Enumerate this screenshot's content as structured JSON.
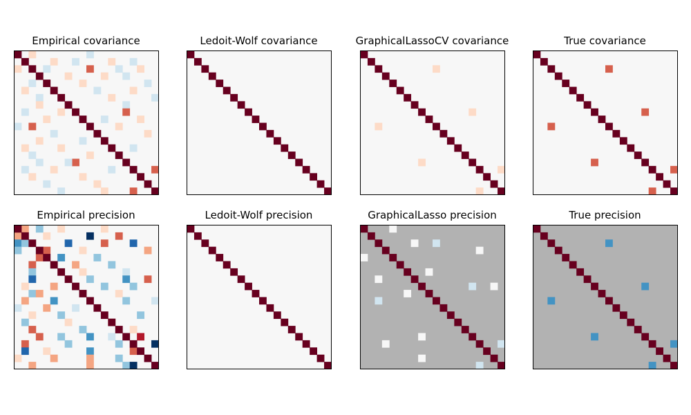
{
  "figure": {
    "background": "#ffffff",
    "colormap": "RdBu_r",
    "colors": {
      "diag": "#67001f",
      "neutral": "#f7f7f7",
      "mask": "#b2b2b2",
      "red_strong": "#b2182b",
      "red_mid": "#d6604d",
      "red_light": "#f4a582",
      "red_pale": "#fddbc7",
      "blue_pale": "#d1e5f0",
      "blue_light": "#92c5de",
      "blue_mid": "#4393c3",
      "blue_strong": "#2166ac",
      "blue_dark": "#053061"
    }
  },
  "chart_data": [
    {
      "type": "heatmap",
      "title": "Empirical covariance",
      "size": 20,
      "background_color": "#f7f7f7",
      "diagonal_color": "#67001f",
      "cells": [
        {
          "r": 0,
          "c": 10,
          "color": "#d1e5f0"
        },
        {
          "r": 0,
          "c": 2,
          "color": "#fddbc7"
        },
        {
          "r": 1,
          "c": 5,
          "color": "#fddbc7"
        },
        {
          "r": 1,
          "c": 8,
          "color": "#d1e5f0"
        },
        {
          "r": 1,
          "c": 13,
          "color": "#fddbc7"
        },
        {
          "r": 1,
          "c": 16,
          "color": "#d1e5f0"
        },
        {
          "r": 2,
          "c": 0,
          "color": "#fddbc7"
        },
        {
          "r": 2,
          "c": 10,
          "color": "#d6604d"
        },
        {
          "r": 2,
          "c": 4,
          "color": "#d1e5f0"
        },
        {
          "r": 2,
          "c": 14,
          "color": "#d1e5f0"
        },
        {
          "r": 2,
          "c": 17,
          "color": "#fddbc7"
        },
        {
          "r": 3,
          "c": 12,
          "color": "#fddbc7"
        },
        {
          "r": 3,
          "c": 7,
          "color": "#fddbc7"
        },
        {
          "r": 3,
          "c": 15,
          "color": "#d1e5f0"
        },
        {
          "r": 4,
          "c": 2,
          "color": "#d1e5f0"
        },
        {
          "r": 4,
          "c": 9,
          "color": "#fddbc7"
        },
        {
          "r": 4,
          "c": 18,
          "color": "#d1e5f0"
        },
        {
          "r": 5,
          "c": 1,
          "color": "#fddbc7"
        },
        {
          "r": 5,
          "c": 11,
          "color": "#d1e5f0"
        },
        {
          "r": 5,
          "c": 16,
          "color": "#fddbc7"
        },
        {
          "r": 6,
          "c": 3,
          "color": "#d1e5f0"
        },
        {
          "r": 6,
          "c": 13,
          "color": "#fddbc7"
        },
        {
          "r": 6,
          "c": 19,
          "color": "#d1e5f0"
        },
        {
          "r": 7,
          "c": 3,
          "color": "#fddbc7"
        },
        {
          "r": 7,
          "c": 15,
          "color": "#d1e5f0"
        },
        {
          "r": 8,
          "c": 1,
          "color": "#d1e5f0"
        },
        {
          "r": 8,
          "c": 15,
          "color": "#d6604d"
        },
        {
          "r": 8,
          "c": 6,
          "color": "#fddbc7"
        },
        {
          "r": 9,
          "c": 4,
          "color": "#fddbc7"
        },
        {
          "r": 9,
          "c": 12,
          "color": "#d1e5f0"
        },
        {
          "r": 9,
          "c": 17,
          "color": "#fddbc7"
        },
        {
          "r": 10,
          "c": 2,
          "color": "#d6604d"
        },
        {
          "r": 10,
          "c": 0,
          "color": "#d1e5f0"
        },
        {
          "r": 10,
          "c": 14,
          "color": "#fddbc7"
        },
        {
          "r": 11,
          "c": 5,
          "color": "#d1e5f0"
        },
        {
          "r": 11,
          "c": 18,
          "color": "#fddbc7"
        },
        {
          "r": 12,
          "c": 3,
          "color": "#fddbc7"
        },
        {
          "r": 12,
          "c": 9,
          "color": "#d1e5f0"
        },
        {
          "r": 13,
          "c": 1,
          "color": "#fddbc7"
        },
        {
          "r": 13,
          "c": 6,
          "color": "#fddbc7"
        },
        {
          "r": 13,
          "c": 16,
          "color": "#d1e5f0"
        },
        {
          "r": 14,
          "c": 2,
          "color": "#d1e5f0"
        },
        {
          "r": 14,
          "c": 10,
          "color": "#fddbc7"
        },
        {
          "r": 15,
          "c": 8,
          "color": "#d6604d"
        },
        {
          "r": 15,
          "c": 3,
          "color": "#d1e5f0"
        },
        {
          "r": 15,
          "c": 7,
          "color": "#d1e5f0"
        },
        {
          "r": 16,
          "c": 19,
          "color": "#d6604d"
        },
        {
          "r": 16,
          "c": 1,
          "color": "#d1e5f0"
        },
        {
          "r": 16,
          "c": 5,
          "color": "#fddbc7"
        },
        {
          "r": 16,
          "c": 13,
          "color": "#d1e5f0"
        },
        {
          "r": 17,
          "c": 2,
          "color": "#fddbc7"
        },
        {
          "r": 17,
          "c": 9,
          "color": "#fddbc7"
        },
        {
          "r": 18,
          "c": 4,
          "color": "#d1e5f0"
        },
        {
          "r": 18,
          "c": 11,
          "color": "#fddbc7"
        },
        {
          "r": 19,
          "c": 16,
          "color": "#d6604d"
        },
        {
          "r": 19,
          "c": 6,
          "color": "#d1e5f0"
        },
        {
          "r": 19,
          "c": 12,
          "color": "#fddbc7"
        }
      ]
    },
    {
      "type": "heatmap",
      "title": "Ledoit-Wolf covariance",
      "size": 20,
      "background_color": "#f7f7f7",
      "diagonal_color": "#67001f",
      "cells": []
    },
    {
      "type": "heatmap",
      "title": "GraphicalLassoCV covariance",
      "size": 20,
      "background_color": "#f7f7f7",
      "diagonal_color": "#67001f",
      "cells": [
        {
          "r": 2,
          "c": 10,
          "color": "#fddbc7"
        },
        {
          "r": 10,
          "c": 2,
          "color": "#fddbc7"
        },
        {
          "r": 8,
          "c": 15,
          "color": "#fddbc7"
        },
        {
          "r": 15,
          "c": 8,
          "color": "#fddbc7"
        },
        {
          "r": 16,
          "c": 19,
          "color": "#fddbc7"
        },
        {
          "r": 19,
          "c": 16,
          "color": "#fddbc7"
        }
      ]
    },
    {
      "type": "heatmap",
      "title": "True covariance",
      "size": 20,
      "background_color": "#f7f7f7",
      "diagonal_color": "#67001f",
      "cells": [
        {
          "r": 2,
          "c": 10,
          "color": "#d6604d"
        },
        {
          "r": 10,
          "c": 2,
          "color": "#d6604d"
        },
        {
          "r": 8,
          "c": 15,
          "color": "#d6604d"
        },
        {
          "r": 15,
          "c": 8,
          "color": "#d6604d"
        },
        {
          "r": 16,
          "c": 19,
          "color": "#d6604d"
        },
        {
          "r": 19,
          "c": 16,
          "color": "#d6604d"
        }
      ]
    },
    {
      "type": "heatmap",
      "title": "Empirical precision",
      "size": 20,
      "background_color": "#f7f7f7",
      "diagonal_color": "#67001f",
      "cells": [
        {
          "r": 0,
          "c": 1,
          "color": "#f4a582"
        },
        {
          "r": 0,
          "c": 3,
          "color": "#92c5de"
        },
        {
          "r": 0,
          "c": 6,
          "color": "#fddbc7"
        },
        {
          "r": 0,
          "c": 12,
          "color": "#fddbc7"
        },
        {
          "r": 1,
          "c": 0,
          "color": "#f4a582"
        },
        {
          "r": 1,
          "c": 10,
          "color": "#053061"
        },
        {
          "r": 1,
          "c": 14,
          "color": "#d6604d"
        },
        {
          "r": 1,
          "c": 4,
          "color": "#fddbc7"
        },
        {
          "r": 2,
          "c": 0,
          "color": "#4393c3"
        },
        {
          "r": 2,
          "c": 1,
          "color": "#92c5de"
        },
        {
          "r": 2,
          "c": 7,
          "color": "#2166ac"
        },
        {
          "r": 2,
          "c": 12,
          "color": "#d6604d"
        },
        {
          "r": 2,
          "c": 16,
          "color": "#2166ac"
        },
        {
          "r": 3,
          "c": 0,
          "color": "#92c5de"
        },
        {
          "r": 3,
          "c": 4,
          "color": "#d6604d"
        },
        {
          "r": 3,
          "c": 9,
          "color": "#fddbc7"
        },
        {
          "r": 3,
          "c": 18,
          "color": "#f4a582"
        },
        {
          "r": 4,
          "c": 3,
          "color": "#d6604d"
        },
        {
          "r": 4,
          "c": 6,
          "color": "#4393c3"
        },
        {
          "r": 4,
          "c": 11,
          "color": "#92c5de"
        },
        {
          "r": 5,
          "c": 2,
          "color": "#d6604d"
        },
        {
          "r": 5,
          "c": 8,
          "color": "#f4a582"
        },
        {
          "r": 5,
          "c": 13,
          "color": "#92c5de"
        },
        {
          "r": 6,
          "c": 2,
          "color": "#92c5de"
        },
        {
          "r": 6,
          "c": 9,
          "color": "#fddbc7"
        },
        {
          "r": 6,
          "c": 15,
          "color": "#d1e5f0"
        },
        {
          "r": 7,
          "c": 2,
          "color": "#2166ac"
        },
        {
          "r": 7,
          "c": 10,
          "color": "#92c5de"
        },
        {
          "r": 7,
          "c": 15,
          "color": "#4393c3"
        },
        {
          "r": 7,
          "c": 18,
          "color": "#d6604d"
        },
        {
          "r": 8,
          "c": 1,
          "color": "#fddbc7"
        },
        {
          "r": 8,
          "c": 5,
          "color": "#f4a582"
        },
        {
          "r": 8,
          "c": 12,
          "color": "#92c5de"
        },
        {
          "r": 8,
          "c": 16,
          "color": "#92c5de"
        },
        {
          "r": 9,
          "c": 2,
          "color": "#92c5de"
        },
        {
          "r": 9,
          "c": 3,
          "color": "#f4a582"
        },
        {
          "r": 9,
          "c": 14,
          "color": "#fddbc7"
        },
        {
          "r": 10,
          "c": 1,
          "color": "#f4a582"
        },
        {
          "r": 10,
          "c": 5,
          "color": "#4393c3"
        },
        {
          "r": 10,
          "c": 15,
          "color": "#92c5de"
        },
        {
          "r": 10,
          "c": 19,
          "color": "#d1e5f0"
        },
        {
          "r": 11,
          "c": 0,
          "color": "#d1e5f0"
        },
        {
          "r": 11,
          "c": 4,
          "color": "#f4a582"
        },
        {
          "r": 11,
          "c": 8,
          "color": "#d1e5f0"
        },
        {
          "r": 12,
          "c": 2,
          "color": "#fddbc7"
        },
        {
          "r": 12,
          "c": 6,
          "color": "#92c5de"
        },
        {
          "r": 12,
          "c": 17,
          "color": "#92c5de"
        },
        {
          "r": 13,
          "c": 1,
          "color": "#92c5de"
        },
        {
          "r": 13,
          "c": 7,
          "color": "#fddbc7"
        },
        {
          "r": 13,
          "c": 13,
          "color": "#f4a582"
        },
        {
          "r": 14,
          "c": 2,
          "color": "#d6604d"
        },
        {
          "r": 14,
          "c": 9,
          "color": "#92c5de"
        },
        {
          "r": 14,
          "c": 16,
          "color": "#fddbc7"
        },
        {
          "r": 15,
          "c": 3,
          "color": "#d6604d"
        },
        {
          "r": 15,
          "c": 6,
          "color": "#92c5de"
        },
        {
          "r": 15,
          "c": 10,
          "color": "#4393c3"
        },
        {
          "r": 15,
          "c": 13,
          "color": "#d1e5f0"
        },
        {
          "r": 15,
          "c": 17,
          "color": "#b2182b"
        },
        {
          "r": 16,
          "c": 1,
          "color": "#d6604d"
        },
        {
          "r": 16,
          "c": 7,
          "color": "#92c5de"
        },
        {
          "r": 16,
          "c": 14,
          "color": "#92c5de"
        },
        {
          "r": 16,
          "c": 19,
          "color": "#053061"
        },
        {
          "r": 17,
          "c": 1,
          "color": "#2166ac"
        },
        {
          "r": 17,
          "c": 4,
          "color": "#fddbc7"
        },
        {
          "r": 17,
          "c": 10,
          "color": "#4393c3"
        },
        {
          "r": 17,
          "c": 16,
          "color": "#d6604d"
        },
        {
          "r": 18,
          "c": 0,
          "color": "#fddbc7"
        },
        {
          "r": 18,
          "c": 5,
          "color": "#f4a582"
        },
        {
          "r": 18,
          "c": 10,
          "color": "#f4a582"
        },
        {
          "r": 18,
          "c": 14,
          "color": "#92c5de"
        },
        {
          "r": 19,
          "c": 2,
          "color": "#f4a582"
        },
        {
          "r": 19,
          "c": 10,
          "color": "#f4a582"
        },
        {
          "r": 19,
          "c": 15,
          "color": "#92c5de"
        },
        {
          "r": 19,
          "c": 16,
          "color": "#053061"
        }
      ]
    },
    {
      "type": "heatmap",
      "title": "Ledoit-Wolf precision",
      "size": 20,
      "background_color": "#f7f7f7",
      "diagonal_color": "#67001f",
      "cells": []
    },
    {
      "type": "heatmap",
      "title": "GraphicalLasso precision",
      "size": 20,
      "background_color": "#b2b2b2",
      "diagonal_color": "#67001f",
      "cells": [
        {
          "r": 0,
          "c": 4,
          "color": "#f7f7f7"
        },
        {
          "r": 4,
          "c": 0,
          "color": "#f7f7f7"
        },
        {
          "r": 2,
          "c": 7,
          "color": "#f7f7f7"
        },
        {
          "r": 2,
          "c": 10,
          "color": "#d1e5f0"
        },
        {
          "r": 10,
          "c": 2,
          "color": "#d1e5f0"
        },
        {
          "r": 3,
          "c": 16,
          "color": "#f7f7f7"
        },
        {
          "r": 6,
          "c": 9,
          "color": "#f7f7f7"
        },
        {
          "r": 7,
          "c": 2,
          "color": "#f7f7f7"
        },
        {
          "r": 8,
          "c": 15,
          "color": "#d1e5f0"
        },
        {
          "r": 8,
          "c": 18,
          "color": "#f7f7f7"
        },
        {
          "r": 9,
          "c": 6,
          "color": "#f7f7f7"
        },
        {
          "r": 16,
          "c": 19,
          "color": "#d1e5f0"
        },
        {
          "r": 16,
          "c": 3,
          "color": "#f7f7f7"
        },
        {
          "r": 15,
          "c": 8,
          "color": "#f7f7f7"
        },
        {
          "r": 18,
          "c": 8,
          "color": "#f7f7f7"
        },
        {
          "r": 19,
          "c": 16,
          "color": "#d1e5f0"
        }
      ]
    },
    {
      "type": "heatmap",
      "title": "True precision",
      "size": 20,
      "background_color": "#b2b2b2",
      "diagonal_color": "#67001f",
      "cells": [
        {
          "r": 2,
          "c": 10,
          "color": "#4393c3"
        },
        {
          "r": 10,
          "c": 2,
          "color": "#4393c3"
        },
        {
          "r": 8,
          "c": 15,
          "color": "#4393c3"
        },
        {
          "r": 15,
          "c": 8,
          "color": "#4393c3"
        },
        {
          "r": 16,
          "c": 19,
          "color": "#4393c3"
        },
        {
          "r": 19,
          "c": 16,
          "color": "#4393c3"
        }
      ]
    }
  ]
}
